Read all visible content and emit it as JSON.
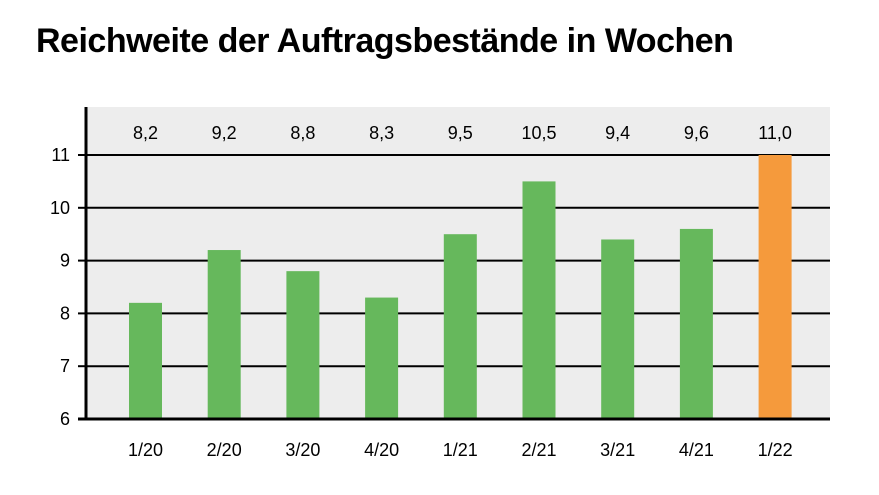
{
  "title": "Reichweite der Auftragsbestände in Wochen",
  "chart_data": {
    "type": "bar",
    "title": "Reichweite der Auftragsbestände in Wochen",
    "categories": [
      "1/20",
      "2/20",
      "3/20",
      "4/20",
      "1/21",
      "2/21",
      "3/21",
      "4/21",
      "1/22"
    ],
    "values": [
      8.2,
      9.2,
      8.8,
      8.3,
      9.5,
      10.5,
      9.4,
      9.6,
      11.0
    ],
    "value_labels": [
      "8,2",
      "9,2",
      "8,8",
      "8,3",
      "9,5",
      "10,5",
      "9,4",
      "9,6",
      "11,0"
    ],
    "ylim": [
      6,
      11
    ],
    "yticks": [
      6,
      7,
      8,
      9,
      10,
      11
    ],
    "grid": true,
    "xlabel": "",
    "ylabel": "",
    "colors": {
      "bar": "#66b85c",
      "highlight": "#f59a3c",
      "plot_bg": "#ededed",
      "grid": "#000000"
    },
    "highlight_index": 8
  }
}
